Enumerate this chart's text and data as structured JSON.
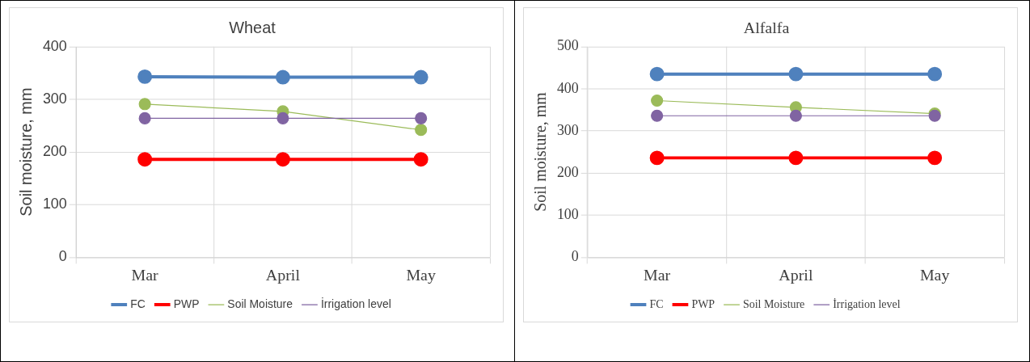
{
  "chart_data": [
    {
      "type": "line",
      "title": "Wheat",
      "ylabel": "Soil moisture, mm",
      "categories": [
        "Mar",
        "April",
        "May"
      ],
      "ylim": [
        0,
        400
      ],
      "yticks": [
        0,
        100,
        200,
        300,
        400
      ],
      "grid": true,
      "legend": "bottom",
      "marker": "circle",
      "series": [
        {
          "name": "FC",
          "color": "#4f81bd",
          "values": [
            343,
            342,
            342
          ]
        },
        {
          "name": "PWP",
          "color": "#ff0000",
          "values": [
            186,
            186,
            186
          ]
        },
        {
          "name": "Soil Moisture",
          "color": "#9bbb59",
          "values": [
            291,
            277,
            242
          ]
        },
        {
          "name": "İrrigation level",
          "color": "#8064a2",
          "values": [
            264,
            264,
            264
          ]
        }
      ]
    },
    {
      "type": "line",
      "title": "Alfalfa",
      "ylabel": "Soil moisture, mm",
      "categories": [
        "Mar",
        "April",
        "May"
      ],
      "ylim": [
        0,
        500
      ],
      "yticks": [
        0,
        100,
        200,
        300,
        400,
        500
      ],
      "grid": true,
      "legend": "bottom",
      "marker": "circle",
      "series": [
        {
          "name": "FC",
          "color": "#4f81bd",
          "values": [
            435,
            435,
            435
          ]
        },
        {
          "name": "PWP",
          "color": "#ff0000",
          "values": [
            236,
            236,
            236
          ]
        },
        {
          "name": "Soil Moisture",
          "color": "#9bbb59",
          "values": [
            372,
            356,
            341
          ]
        },
        {
          "name": "İrrigation level",
          "color": "#8064a2",
          "values": [
            336,
            336,
            336
          ]
        }
      ]
    }
  ]
}
